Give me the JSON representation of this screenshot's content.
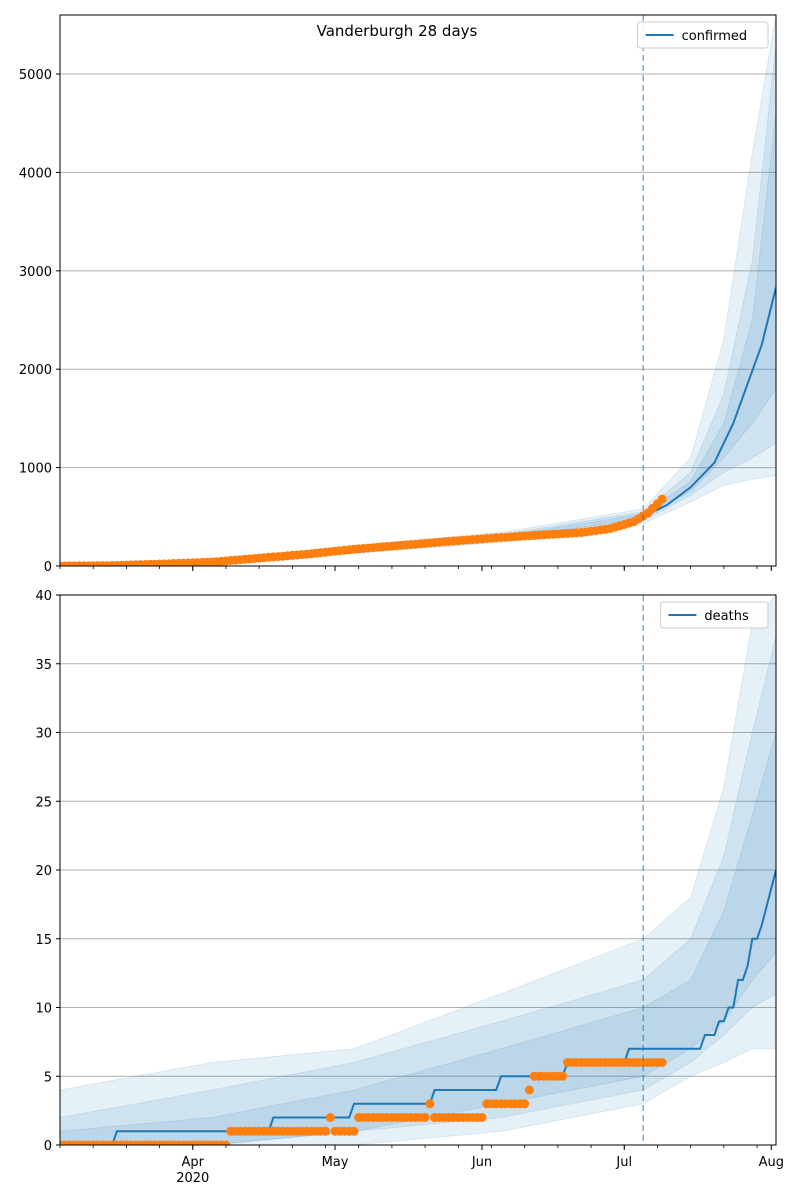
{
  "figure_title": "Vanderburgh 28 days",
  "x_tick_labels": [
    "Apr",
    "May",
    "Jun",
    "Jul",
    "Aug"
  ],
  "x_year_label": "2020",
  "colors": {
    "model": "#1f77b4",
    "observed": "#ff7f0e",
    "band": "#1f77b4",
    "grid": "#b0b0b0",
    "forecast_line": "#1f77b4"
  },
  "chart_data": [
    {
      "type": "line",
      "legend": [
        "confirmed"
      ],
      "legend_position": "top-right",
      "grid": "horizontal",
      "xlim": [
        "2020-03-04",
        "2020-08-02"
      ],
      "ylim": [
        0,
        5600
      ],
      "yticks": [
        0,
        1000,
        2000,
        3000,
        4000,
        5000
      ],
      "forecast_start": "2020-07-05",
      "series": [
        {
          "name": "confirmed",
          "kind": "model",
          "x": [
            "2020-03-04",
            "2020-03-15",
            "2020-03-25",
            "2020-04-05",
            "2020-04-15",
            "2020-04-25",
            "2020-05-05",
            "2020-05-15",
            "2020-05-25",
            "2020-06-05",
            "2020-06-15",
            "2020-06-22",
            "2020-06-28",
            "2020-07-05",
            "2020-07-10",
            "2020-07-15",
            "2020-07-20",
            "2020-07-24",
            "2020-07-27",
            "2020-07-30",
            "2020-08-02"
          ],
          "y": [
            0,
            5,
            20,
            40,
            80,
            120,
            170,
            210,
            250,
            290,
            320,
            340,
            380,
            500,
            620,
            800,
            1050,
            1450,
            1850,
            2250,
            2830
          ]
        },
        {
          "kind": "observed",
          "x": [
            "2020-03-04",
            "2020-03-15",
            "2020-03-25",
            "2020-04-05",
            "2020-04-15",
            "2020-04-25",
            "2020-05-05",
            "2020-05-15",
            "2020-05-25",
            "2020-06-05",
            "2020-06-15",
            "2020-06-22",
            "2020-06-28",
            "2020-07-03",
            "2020-07-06",
            "2020-07-09"
          ],
          "y": [
            0,
            5,
            20,
            40,
            80,
            120,
            170,
            210,
            250,
            290,
            320,
            340,
            380,
            450,
            540,
            680
          ]
        }
      ],
      "bands": [
        {
          "x": [
            "2020-03-04",
            "2020-04-05",
            "2020-05-05",
            "2020-06-05",
            "2020-07-05",
            "2020-07-15",
            "2020-07-22",
            "2020-07-28",
            "2020-08-02"
          ],
          "low": [
            0,
            20,
            130,
            240,
            430,
            650,
            820,
            880,
            920
          ],
          "high": [
            0,
            60,
            210,
            340,
            580,
            1100,
            2300,
            4200,
            5600
          ]
        },
        {
          "x": [
            "2020-03-04",
            "2020-04-05",
            "2020-05-05",
            "2020-06-05",
            "2020-07-05",
            "2020-07-15",
            "2020-07-22",
            "2020-07-28",
            "2020-08-02"
          ],
          "low": [
            0,
            28,
            145,
            260,
            460,
            720,
            950,
            1100,
            1250
          ],
          "high": [
            0,
            52,
            195,
            320,
            550,
            950,
            1750,
            3100,
            5300
          ]
        },
        {
          "x": [
            "2020-03-04",
            "2020-04-05",
            "2020-05-05",
            "2020-06-05",
            "2020-07-05",
            "2020-07-15",
            "2020-07-22",
            "2020-07-28",
            "2020-08-02"
          ],
          "low": [
            0,
            34,
            160,
            275,
            485,
            760,
            1100,
            1450,
            1800
          ],
          "high": [
            0,
            46,
            180,
            305,
            525,
            860,
            1450,
            2500,
            4600
          ]
        }
      ]
    },
    {
      "type": "line",
      "legend": [
        "deaths"
      ],
      "legend_position": "top-right",
      "grid": "horizontal",
      "xlim": [
        "2020-03-04",
        "2020-08-02"
      ],
      "ylim": [
        0,
        40
      ],
      "yticks": [
        0,
        5,
        10,
        15,
        20,
        25,
        30,
        35,
        40
      ],
      "forecast_start": "2020-07-05",
      "series": [
        {
          "name": "deaths",
          "kind": "model",
          "x": [
            "2020-03-04",
            "2020-03-15",
            "2020-03-16",
            "2020-04-08",
            "2020-04-09",
            "2020-04-17",
            "2020-04-18",
            "2020-05-04",
            "2020-05-05",
            "2020-05-21",
            "2020-05-22",
            "2020-06-04",
            "2020-06-05",
            "2020-06-18",
            "2020-06-19",
            "2020-07-01",
            "2020-07-02",
            "2020-07-13",
            "2020-07-14",
            "2020-07-17",
            "2020-07-18",
            "2020-07-20",
            "2020-07-21",
            "2020-07-22",
            "2020-07-23",
            "2020-07-24",
            "2020-07-25",
            "2020-07-26",
            "2020-07-27",
            "2020-07-28",
            "2020-07-29",
            "2020-07-30",
            "2020-08-02"
          ],
          "y": [
            0,
            0,
            1,
            1,
            1,
            1,
            2,
            2,
            3,
            3,
            4,
            4,
            5,
            5,
            6,
            6,
            7,
            7,
            7,
            7,
            8,
            8,
            9,
            9,
            10,
            10,
            12,
            12,
            13,
            15,
            15,
            16,
            20
          ]
        },
        {
          "kind": "observed",
          "x": [
            "2020-03-04",
            "2020-04-09",
            "2020-04-30",
            "2020-05-01",
            "2020-05-06",
            "2020-05-21",
            "2020-05-22",
            "2020-06-01",
            "2020-06-02",
            "2020-06-11",
            "2020-06-12",
            "2020-06-19",
            "2020-07-09"
          ],
          "y": [
            0,
            1,
            2,
            1,
            2,
            3,
            2,
            2,
            3,
            4,
            5,
            6,
            6
          ]
        }
      ],
      "bands": [
        {
          "x": [
            "2020-03-04",
            "2020-04-05",
            "2020-05-05",
            "2020-06-05",
            "2020-07-05",
            "2020-07-15",
            "2020-07-22",
            "2020-07-28",
            "2020-08-02"
          ],
          "low": [
            0,
            0,
            0,
            1,
            3,
            5,
            6,
            7,
            7
          ],
          "high": [
            4,
            6,
            7,
            11,
            15,
            18,
            26,
            38,
            40
          ]
        },
        {
          "x": [
            "2020-03-04",
            "2020-04-05",
            "2020-05-05",
            "2020-06-05",
            "2020-07-05",
            "2020-07-15",
            "2020-07-22",
            "2020-07-28",
            "2020-08-02"
          ],
          "low": [
            0,
            0,
            1,
            2,
            4,
            6,
            8,
            10,
            11
          ],
          "high": [
            2,
            4,
            6,
            9,
            12,
            15,
            21,
            30,
            37
          ]
        },
        {
          "x": [
            "2020-03-04",
            "2020-04-05",
            "2020-05-05",
            "2020-06-05",
            "2020-07-05",
            "2020-07-15",
            "2020-07-22",
            "2020-07-28",
            "2020-08-02"
          ],
          "low": [
            0,
            0,
            1,
            3,
            5,
            7,
            9,
            12,
            14
          ],
          "high": [
            1,
            2,
            4,
            7,
            10,
            12,
            17,
            24,
            30
          ]
        }
      ]
    }
  ]
}
